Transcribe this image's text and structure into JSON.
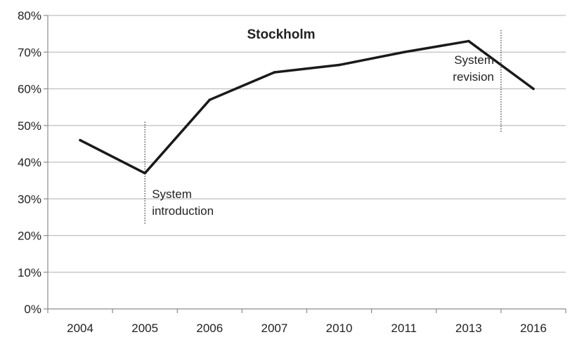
{
  "chart_data": {
    "type": "line",
    "title": "Stockholm",
    "xlabel": "",
    "ylabel": "",
    "categories": [
      "2004",
      "2005",
      "2006",
      "2007",
      "2010",
      "2011",
      "2013",
      "2016"
    ],
    "series": [
      {
        "values": [
          46,
          37,
          57,
          64.5,
          66.5,
          70,
          73,
          60
        ],
        "color": "#1a1a1a"
      }
    ],
    "ylim": [
      0,
      80
    ],
    "yticks": [
      0,
      10,
      20,
      30,
      40,
      50,
      60,
      70,
      80
    ],
    "ytick_labels": [
      "0%",
      "10%",
      "20%",
      "30%",
      "40%",
      "50%",
      "60%",
      "70%",
      "80%"
    ],
    "grid": true,
    "legend": "none",
    "annotations": [
      {
        "lines": [
          "System",
          "introduction"
        ],
        "x_category_position": 1.0,
        "y_from": 23,
        "y_to": 51,
        "text_side": "right"
      },
      {
        "lines": [
          "System",
          "revision"
        ],
        "x_category_position": 6.5,
        "y_from": 48,
        "y_to": 76,
        "text_side": "left"
      }
    ]
  }
}
